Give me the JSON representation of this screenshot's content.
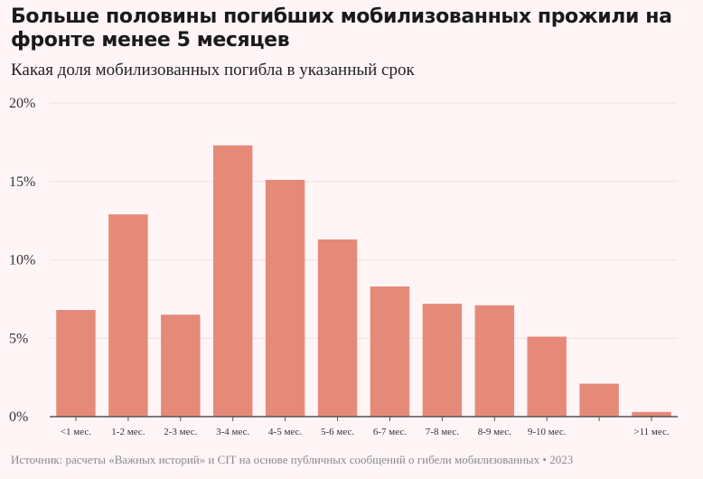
{
  "title": "Больше половины погибших мобилизованных прожили на фронте менее 5 месяцев",
  "subtitle": "Какая доля мобилизованных погибла в указанный срок",
  "source": "Источник: расчеты «Важных историй» и CIT на основе публичных сообщений о гибели мобилизованных • 2023",
  "colors": {
    "bar": "#e58a79",
    "grid": "#f2dfe0",
    "axis": "#555555",
    "background": "#fff5f6"
  },
  "chart_data": {
    "type": "bar",
    "title": "Больше половины погибших мобилизованных прожили на фронте менее 5 месяцев",
    "subtitle": "Какая доля мобилизованных погибла в указанный срок",
    "categories": [
      "<1 мес.",
      "1-2 мес.",
      "2-3 мес.",
      "3-4 мес.",
      "4-5 мес.",
      "5-6 мес.",
      "6-7 мес.",
      "7-8 мес.",
      "8-9 мес.",
      "9-10 мес.",
      "",
      ">11 мес."
    ],
    "values": [
      6.8,
      12.9,
      6.5,
      17.3,
      15.1,
      11.3,
      8.3,
      7.2,
      7.1,
      5.1,
      2.1,
      0.3
    ],
    "ylim": [
      0,
      20
    ],
    "yticks": [
      0,
      5,
      10,
      15,
      20
    ],
    "ytick_labels": [
      "0%",
      "5%",
      "10%",
      "15%",
      "20%"
    ],
    "grid": true,
    "xlabel": "",
    "ylabel": ""
  }
}
